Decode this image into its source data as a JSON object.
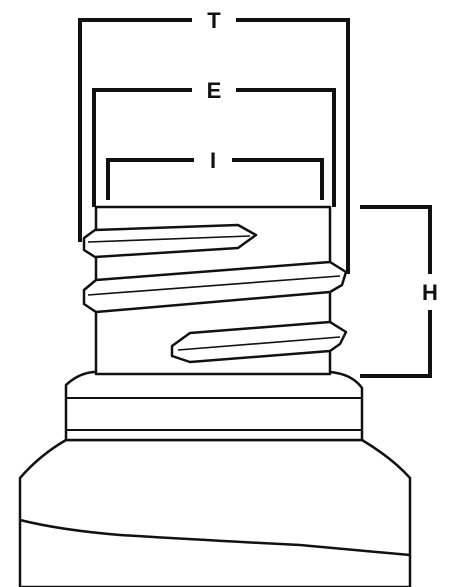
{
  "labels": {
    "T": "T",
    "E": "E",
    "I": "I",
    "H": "H"
  },
  "colors": {
    "line": "#111111",
    "background": "#ffffff"
  }
}
